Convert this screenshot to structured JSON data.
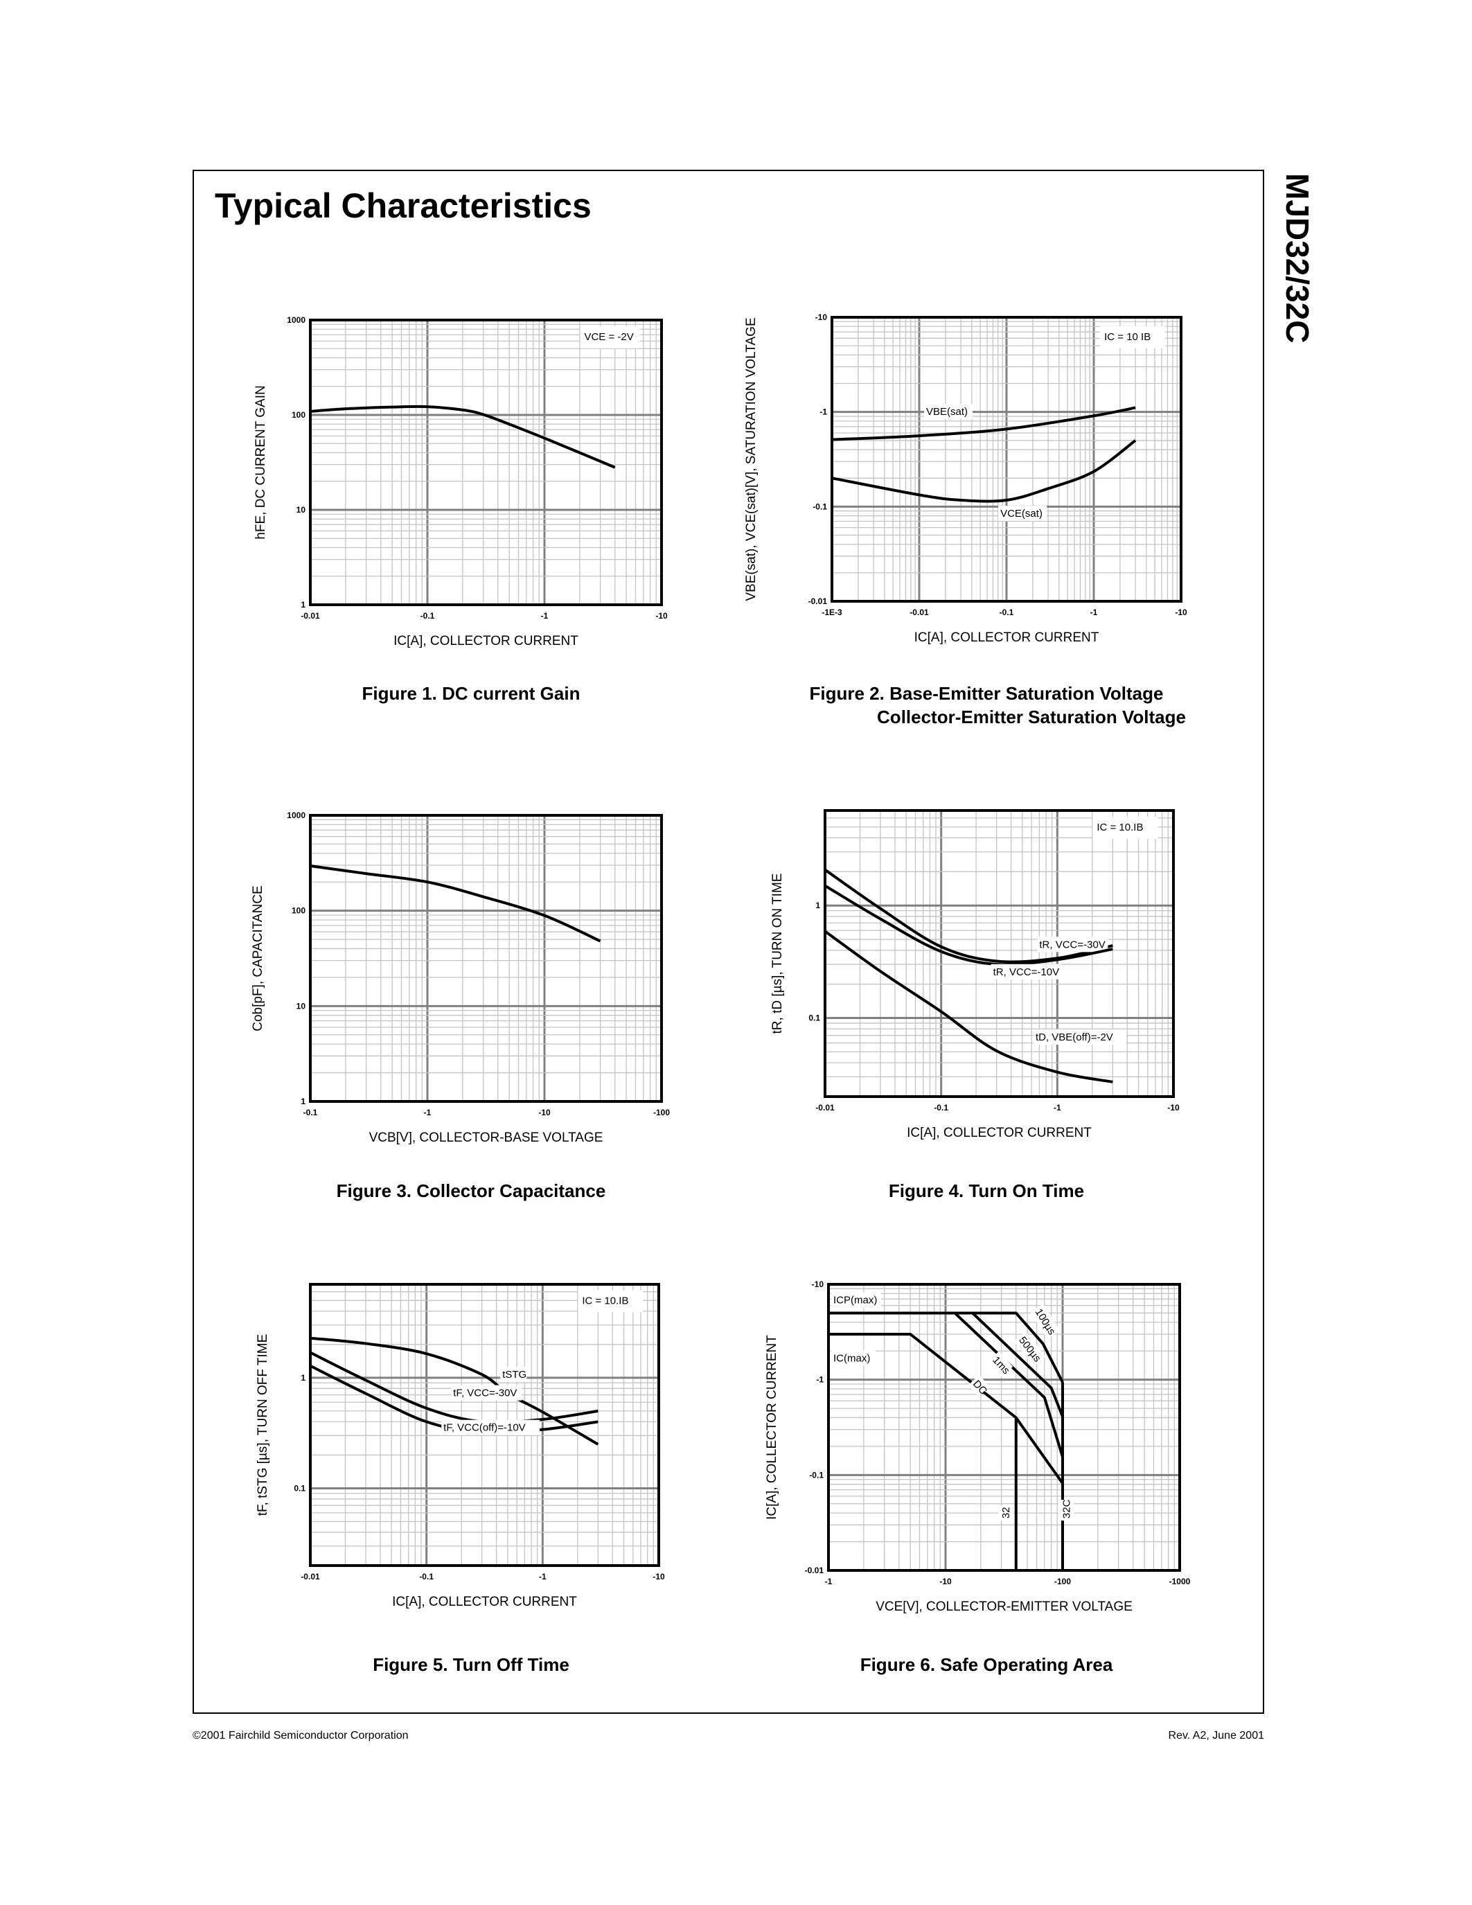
{
  "page": {
    "title": "Typical Characteristics",
    "part_number": "MJD32/32C",
    "footer_left": "©2001 Fairchild Semiconductor Corporation",
    "footer_right": "Rev. A2, June 2001"
  },
  "chart_data": [
    {
      "type": "line",
      "caption": [
        "Figure 1. DC current Gain"
      ],
      "xlabel": "IC[A], COLLECTOR CURRENT",
      "ylabel": "hFE, DC CURRENT GAIN",
      "x_scale": "log",
      "y_scale": "log",
      "xlim": [
        -0.01,
        -10
      ],
      "ylim": [
        1,
        1000
      ],
      "xticks": [
        "-0.01",
        "-0.1",
        "-1",
        "-10"
      ],
      "yticks": [
        "1",
        "10",
        "100",
        "1000"
      ],
      "grid": true,
      "annotations": [
        "VCE = -2V"
      ],
      "series": [
        {
          "points": [
            [
              -0.01,
              109
            ],
            [
              -0.02,
              116
            ],
            [
              -0.05,
              121
            ],
            [
              -0.1,
              122
            ],
            [
              -0.2,
              113
            ],
            [
              -0.3,
              101
            ],
            [
              -0.5,
              80
            ],
            [
              -1,
              57
            ],
            [
              -2,
              40
            ],
            [
              -4,
              28
            ]
          ]
        }
      ]
    },
    {
      "type": "line",
      "caption": [
        "Figure 2. Base-Emitter Saturation Voltage",
        "Collector-Emitter Saturation Voltage"
      ],
      "xlabel": "IC[A], COLLECTOR CURRENT",
      "ylabel": "VBE(sat), VCE(sat)[V], SATURATION VOLTAGE",
      "x_scale": "log",
      "y_scale": "log",
      "xlim": [
        -0.001,
        -10
      ],
      "ylim": [
        -0.01,
        -10
      ],
      "xticks": [
        "-1E-3",
        "-0.01",
        "-0.1",
        "-1",
        "-10"
      ],
      "yticks": [
        "-0.01",
        "-0.1",
        "-1",
        "-10"
      ],
      "grid": true,
      "annotations": [
        "IC = 10 IB"
      ],
      "series": [
        {
          "name": "VBE(sat)",
          "points": [
            [
              -0.001,
              -0.51
            ],
            [
              -0.01,
              -0.56
            ],
            [
              -0.1,
              -0.66
            ],
            [
              -1,
              -0.91
            ],
            [
              -3,
              -1.11
            ]
          ]
        },
        {
          "name": "VCE(sat)",
          "points": [
            [
              -0.001,
              -0.2
            ],
            [
              -0.01,
              -0.133
            ],
            [
              -0.03,
              -0.117
            ],
            [
              -0.1,
              -0.117
            ],
            [
              -0.3,
              -0.155
            ],
            [
              -1,
              -0.235
            ],
            [
              -3,
              -0.5
            ]
          ]
        }
      ]
    },
    {
      "type": "line",
      "caption": [
        "Figure 3. Collector Capacitance"
      ],
      "xlabel": "VCB[V], COLLECTOR-BASE VOLTAGE",
      "ylabel": "Cob[pF], CAPACITANCE",
      "x_scale": "log",
      "y_scale": "log",
      "xlim": [
        -0.1,
        -100
      ],
      "ylim": [
        1,
        1000
      ],
      "xticks": [
        "-0.1",
        "-1",
        "-10",
        "-100"
      ],
      "yticks": [
        "1",
        "10",
        "100",
        "1000"
      ],
      "grid": true,
      "annotations": [],
      "series": [
        {
          "points": [
            [
              -0.1,
              295
            ],
            [
              -0.3,
              245
            ],
            [
              -1,
              200
            ],
            [
              -3,
              140
            ],
            [
              -10,
              89
            ],
            [
              -30,
              48
            ]
          ]
        }
      ]
    },
    {
      "type": "line",
      "caption": [
        "Figure 4. Turn On Time"
      ],
      "xlabel": "IC[A], COLLECTOR CURRENT",
      "ylabel": "tR, tD [µs], TURN ON TIME",
      "x_scale": "log",
      "y_scale": "log",
      "xlim": [
        -0.01,
        -10
      ],
      "ylim": [
        0.02,
        7
      ],
      "xticks": [
        "-0.01",
        "-0.1",
        "-1",
        "-10"
      ],
      "yticks": [
        "0.1",
        "1"
      ],
      "grid": true,
      "annotations": [
        "IC = 10.IB"
      ],
      "series": [
        {
          "name": "tR, VCC=-30V",
          "points": [
            [
              -0.01,
              2.08
            ],
            [
              -0.03,
              0.94
            ],
            [
              -0.1,
              0.43
            ],
            [
              -0.3,
              0.32
            ],
            [
              -1,
              0.34
            ],
            [
              -3,
              0.44
            ]
          ]
        },
        {
          "name": "tR, VCC=-10V",
          "points": [
            [
              -0.01,
              1.5
            ],
            [
              -0.03,
              0.76
            ],
            [
              -0.1,
              0.39
            ],
            [
              -0.3,
              0.3
            ],
            [
              -1,
              0.33
            ],
            [
              -3,
              0.41
            ]
          ]
        },
        {
          "name": "tD, VBE(off)=-2V",
          "points": [
            [
              -0.01,
              0.59
            ],
            [
              -0.03,
              0.26
            ],
            [
              -0.1,
              0.114
            ],
            [
              -0.3,
              0.051
            ],
            [
              -1,
              0.033
            ],
            [
              -3,
              0.027
            ]
          ]
        }
      ]
    },
    {
      "type": "line",
      "caption": [
        "Figure 5. Turn Off Time"
      ],
      "xlabel": "IC[A], COLLECTOR CURRENT",
      "ylabel": "tF, tSTG [µs], TURN OFF TIME",
      "x_scale": "log",
      "y_scale": "log",
      "xlim": [
        -0.01,
        -10
      ],
      "ylim": [
        0.02,
        7
      ],
      "xticks": [
        "-0.01",
        "-0.1",
        "-1",
        "-10"
      ],
      "yticks": [
        "0.1",
        "1"
      ],
      "grid": true,
      "annotations": [
        "IC = 10.IB"
      ],
      "series": [
        {
          "name": "tSTG",
          "points": [
            [
              -0.01,
              2.28
            ],
            [
              -0.03,
              2.04
            ],
            [
              -0.1,
              1.65
            ],
            [
              -0.3,
              1.07
            ],
            [
              -0.5,
              0.72
            ],
            [
              -1,
              0.49
            ],
            [
              -3,
              0.25
            ]
          ]
        },
        {
          "name": "tF, VCC=-30V",
          "points": [
            [
              -0.01,
              1.69
            ],
            [
              -0.03,
              0.95
            ],
            [
              -0.1,
              0.53
            ],
            [
              -0.3,
              0.4
            ],
            [
              -1,
              0.42
            ],
            [
              -3,
              0.5
            ]
          ]
        },
        {
          "name": "tF, VCC(off)=-10V",
          "points": [
            [
              -0.01,
              1.28
            ],
            [
              -0.03,
              0.72
            ],
            [
              -0.1,
              0.4
            ],
            [
              -0.3,
              0.32
            ],
            [
              -1,
              0.34
            ],
            [
              -3,
              0.4
            ]
          ]
        }
      ]
    },
    {
      "type": "line",
      "caption": [
        "Figure 6. Safe Operating Area"
      ],
      "xlabel": "VCE[V], COLLECTOR-EMITTER VOLTAGE",
      "ylabel": "IC[A], COLLECTOR CURRENT",
      "x_scale": "log",
      "y_scale": "log",
      "xlim": [
        -1,
        -1000
      ],
      "ylim": [
        -0.01,
        -10
      ],
      "xticks": [
        "-1",
        "-10",
        "-100",
        "-1000"
      ],
      "yticks": [
        "-0.01",
        "-0.1",
        "-1",
        "-10"
      ],
      "grid": true,
      "annotations": [
        "ICP(max)",
        "IC(max)"
      ],
      "series": [
        {
          "name": "DC",
          "points": [
            [
              -1,
              -3
            ],
            [
              -5,
              -3
            ],
            [
              -40,
              -0.4
            ],
            [
              -100,
              -0.082
            ]
          ]
        },
        {
          "name": "1ms",
          "points": [
            [
              -12,
              -5
            ],
            [
              -70,
              -0.65
            ],
            [
              -100,
              -0.155
            ]
          ]
        },
        {
          "name": "500µs",
          "points": [
            [
              -17,
              -5
            ],
            [
              -80,
              -0.82
            ],
            [
              -100,
              -0.41
            ]
          ]
        },
        {
          "name": "100µs",
          "points": [
            [
              -1,
              -5
            ],
            [
              -40,
              -5
            ],
            [
              -68,
              -2.38
            ],
            [
              -100,
              -0.94
            ]
          ]
        },
        {
          "name": "32",
          "points": [
            [
              -40,
              -0.4
            ],
            [
              -40,
              -0.01
            ]
          ]
        },
        {
          "name": "32C",
          "points": [
            [
              -100,
              -0.94
            ],
            [
              -100,
              -0.01
            ]
          ]
        }
      ]
    }
  ]
}
